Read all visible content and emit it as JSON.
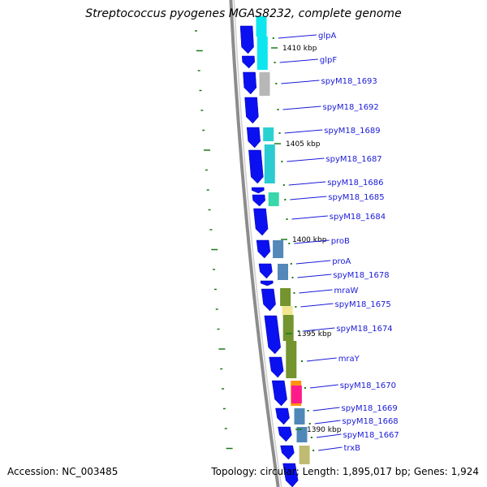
{
  "title": "Streptococcus pyogenes MGAS8232, complete genome",
  "accession": "Accession: NC_003485",
  "topology": "Topology: circular; Length: 1,895,017 bp; Genes: 1,924",
  "colors": {
    "backbone": "#8c8c8c",
    "gene_arrow": "#0b10f0",
    "label": "#1a1ad8",
    "tick": "#1a7a1a"
  },
  "scale_labels": [
    "1410 kbp",
    "1405 kbp",
    "1400 kbp",
    "1395 kbp",
    "1390 kbp"
  ],
  "genes": [
    "glpA",
    "glpF",
    "spyM18_1693",
    "spyM18_1692",
    "spyM18_1689",
    "spyM18_1687",
    "spyM18_1686",
    "spyM18_1685",
    "spyM18_1684",
    "proB",
    "proA",
    "spyM18_1678",
    "mraW",
    "spyM18_1675",
    "spyM18_1674",
    "mraY",
    "spyM18_1670",
    "spyM18_1669",
    "spyM18_1668",
    "spyM18_1667",
    "trxB"
  ],
  "cog_colors": [
    "#00e5ee",
    "#00e5ee",
    "#b3b3b3",
    "#1fcfcf",
    "#1fc8cf",
    "#2fd5a5",
    "#4a82b5",
    "#4a82b5",
    "#6b8e23",
    "#f0e68c",
    "#6b8e23",
    "#6b8e23",
    "#ff8c00",
    "#ff1493",
    "#4682b4",
    "#4682b4",
    "#bdb76b"
  ]
}
